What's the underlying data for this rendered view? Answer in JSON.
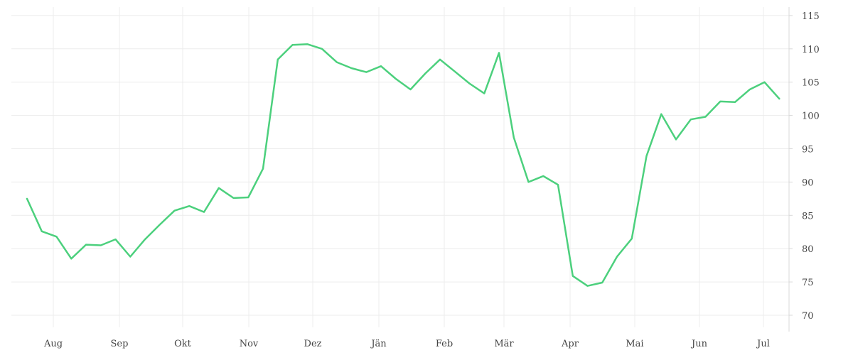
{
  "chart_data": {
    "type": "line",
    "x_label_months": [
      "Aug",
      "Sep",
      "Okt",
      "Nov",
      "Dez",
      "Jän",
      "Feb",
      "Mär",
      "Apr",
      "Mai",
      "Jun",
      "Jul"
    ],
    "y_ticks": [
      70,
      75,
      80,
      85,
      90,
      95,
      100,
      105,
      110,
      115
    ],
    "ylim": [
      68,
      116
    ],
    "y_axis_side": "right",
    "grid": true,
    "legend": "none",
    "series": [
      {
        "color": "#4cd07d",
        "values": [
          87.5,
          82.6,
          81.8,
          78.5,
          80.6,
          80.5,
          81.4,
          78.8,
          81.4,
          83.6,
          85.7,
          86.4,
          85.5,
          89.1,
          87.6,
          87.7,
          92.0,
          108.4,
          110.6,
          110.7,
          110.0,
          108.0,
          107.1,
          106.5,
          107.4,
          105.5,
          103.9,
          106.3,
          108.4,
          106.6,
          104.8,
          103.3,
          109.4,
          96.7,
          90.0,
          90.9,
          89.6,
          75.9,
          74.4,
          74.9,
          78.8,
          81.5,
          93.9,
          100.2,
          96.4,
          99.4,
          99.8,
          102.1,
          102.0,
          103.9,
          105.0,
          102.5
        ]
      }
    ]
  }
}
